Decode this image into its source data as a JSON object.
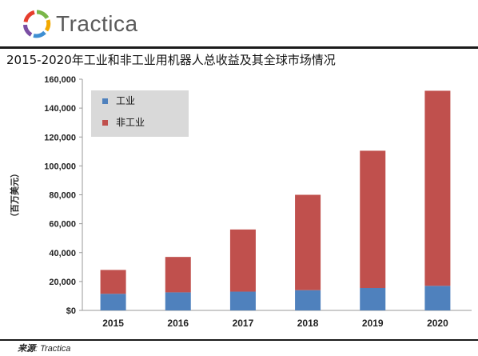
{
  "brand": {
    "name": "Tractica",
    "colors": [
      "#7ab648",
      "#f2a900",
      "#3f8fd2",
      "#7a4ea3",
      "#e63e2d"
    ]
  },
  "title": "2015-2020年工业和非工业用机器人总收益及其全球市场情况",
  "footer": {
    "source_label": "来源",
    "source_value": ": Tractica"
  },
  "chart_data": {
    "type": "bar",
    "stacked": true,
    "categories": [
      "2015",
      "2016",
      "2017",
      "2018",
      "2019",
      "2020"
    ],
    "series": [
      {
        "name": "工业",
        "color": "#4f81bd",
        "values": [
          11500,
          12500,
          13000,
          14000,
          15500,
          17000
        ]
      },
      {
        "name": "非工业",
        "color": "#c0504d",
        "values": [
          16500,
          24500,
          43000,
          66000,
          95000,
          135000
        ]
      }
    ],
    "ylabel": "（百万美元）",
    "ylim": [
      0,
      160000
    ],
    "yticks": [
      0,
      20000,
      40000,
      60000,
      80000,
      100000,
      120000,
      140000,
      160000
    ],
    "ytick_labels": [
      "$0",
      "20,000",
      "40,000",
      "60,000",
      "80,000",
      "100,000",
      "120,000",
      "140,000",
      "160,000"
    ],
    "grid": false,
    "legend_position": "top-left"
  }
}
